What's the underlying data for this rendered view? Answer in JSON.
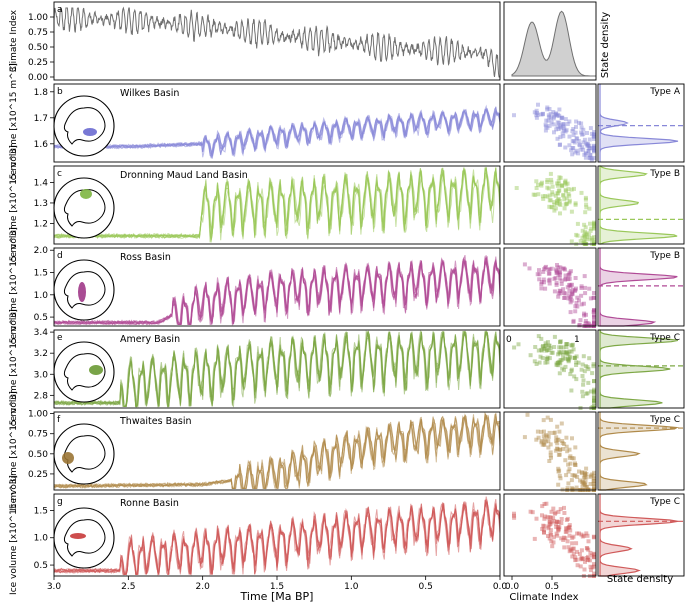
{
  "figure": {
    "time_axis_label": "Time [Ma BP]",
    "time_ticks": [
      "3.0",
      "2.5",
      "2.0",
      "1.5",
      "1.0",
      "0.5",
      "0.0"
    ],
    "climate_index_label": "Climate Index",
    "climate_index_ticks": [
      "0.0",
      "0.5"
    ],
    "state_density_label": "State density",
    "stray_labels": [
      "0",
      "1"
    ]
  },
  "chart_data": [
    {
      "type": "line",
      "panel": "a",
      "ylabel": "Climate Index",
      "ylim": [
        -0.05,
        1.25
      ],
      "y_ticks": [
        "0.00",
        "0.25",
        "0.50",
        "0.75",
        "1.00"
      ],
      "y_tick_values": [
        0.0,
        0.25,
        0.5,
        0.75,
        1.0
      ],
      "color": "#707070",
      "xlim": [
        3.0,
        0.0
      ],
      "trend": [
        [
          3.0,
          1.0
        ],
        [
          2.5,
          0.95
        ],
        [
          2.0,
          0.85
        ],
        [
          1.5,
          0.7
        ],
        [
          1.0,
          0.55
        ],
        [
          0.5,
          0.45
        ],
        [
          0.1,
          0.4
        ],
        [
          0.0,
          0.1
        ]
      ],
      "side_density": {
        "label": "State density",
        "peaks": [
          [
            0.25,
            0.82
          ],
          [
            0.62,
            0.98
          ]
        ]
      }
    },
    {
      "type": "line",
      "panel": "b",
      "basin": "Wilkes Basin",
      "density_type": "Type A",
      "ylabel": "Ice volume [x10^15 m^3]",
      "y_ticks": [
        "1.6",
        "1.7",
        "1.8"
      ],
      "y_tick_values": [
        1.6,
        1.7,
        1.8
      ],
      "ylim": [
        1.53,
        1.83
      ],
      "color": "#8888d8",
      "inset_color": "#6a6ad0",
      "series_count": 8,
      "trend": [
        [
          3.0,
          1.59
        ],
        [
          2.5,
          1.59
        ],
        [
          2.0,
          1.6
        ],
        [
          1.5,
          1.64
        ],
        [
          1.0,
          1.67
        ],
        [
          0.5,
          1.69
        ],
        [
          0.0,
          1.71
        ]
      ],
      "osc_start": 2.0,
      "osc_amp": 0.05,
      "dashed_level": 1.67,
      "density_peaks": [
        [
          1.61,
          1.0
        ],
        [
          1.68,
          0.35
        ]
      ]
    },
    {
      "type": "line",
      "panel": "c",
      "basin": "Dronning Maud Land Basin",
      "density_type": "Type B",
      "ylabel": "Ice volume [x10^15 m^3]",
      "y_ticks": [
        "1.2",
        "1.3",
        "1.4"
      ],
      "y_tick_values": [
        1.2,
        1.3,
        1.4
      ],
      "ylim": [
        1.1,
        1.48
      ],
      "color": "#9ac85a",
      "inset_color": "#7db640",
      "series_count": 8,
      "trend": [
        [
          3.0,
          1.14
        ],
        [
          2.02,
          1.14
        ],
        [
          2.0,
          1.3
        ],
        [
          1.0,
          1.34
        ],
        [
          0.0,
          1.38
        ]
      ],
      "osc_start": 2.0,
      "osc_amp": 0.16,
      "dashed_level": 1.22,
      "density_peaks": [
        [
          1.14,
          1.0
        ],
        [
          1.3,
          0.5
        ],
        [
          1.44,
          0.6
        ]
      ]
    },
    {
      "type": "line",
      "panel": "d",
      "basin": "Ross Basin",
      "density_type": "Type B",
      "ylabel": "Ice volume [x10^15 m^3]",
      "y_ticks": [
        "0.5",
        "1.0",
        "1.5",
        "2.0"
      ],
      "y_tick_values": [
        0.5,
        1.0,
        1.5,
        2.0
      ],
      "ylim": [
        0.3,
        2.05
      ],
      "color": "#b04a96",
      "inset_color": "#a03888",
      "series_count": 8,
      "trend": [
        [
          3.0,
          0.38
        ],
        [
          2.3,
          0.38
        ],
        [
          2.0,
          0.9
        ],
        [
          1.5,
          1.2
        ],
        [
          1.0,
          1.3
        ],
        [
          0.5,
          1.4
        ],
        [
          0.0,
          1.5
        ]
      ],
      "osc_start": 2.2,
      "osc_amp": 0.6,
      "dashed_level": 1.2,
      "density_peaks": [
        [
          0.38,
          0.7
        ],
        [
          1.4,
          1.0
        ]
      ]
    },
    {
      "type": "line",
      "panel": "e",
      "basin": "Amery Basin",
      "density_type": "Type C",
      "ylabel": "Ice volume [x10^15 m^3]",
      "y_ticks": [
        "2.8",
        "3.0",
        "3.2",
        "3.4"
      ],
      "y_tick_values": [
        2.8,
        3.0,
        3.2,
        3.4
      ],
      "ylim": [
        2.68,
        3.42
      ],
      "color": "#7ea846",
      "inset_color": "#6a9a34",
      "series_count": 8,
      "trend": [
        [
          3.0,
          2.73
        ],
        [
          2.55,
          2.73
        ],
        [
          2.5,
          2.95
        ],
        [
          2.0,
          3.05
        ],
        [
          1.5,
          3.15
        ],
        [
          1.0,
          3.2
        ],
        [
          0.0,
          3.25
        ]
      ],
      "osc_start": 2.55,
      "osc_amp": 0.32,
      "dashed_level": 3.08,
      "density_peaks": [
        [
          2.73,
          0.8
        ],
        [
          3.05,
          0.9
        ],
        [
          3.32,
          1.0
        ]
      ]
    },
    {
      "type": "line",
      "panel": "f",
      "basin": "Thwaites Basin",
      "density_type": "Type C",
      "ylabel": "Ice volume [x10^15 m^3]",
      "y_ticks": [
        "0.25",
        "0.50",
        "0.75",
        "1.00"
      ],
      "y_tick_values": [
        0.25,
        0.5,
        0.75,
        1.0
      ],
      "ylim": [
        0.05,
        1.02
      ],
      "color": "#b08a4a",
      "inset_color": "#9a7434",
      "series_count": 7,
      "trend": [
        [
          3.0,
          0.1
        ],
        [
          2.0,
          0.12
        ],
        [
          1.7,
          0.2
        ],
        [
          1.4,
          0.35
        ],
        [
          1.2,
          0.5
        ],
        [
          1.0,
          0.6
        ],
        [
          0.6,
          0.75
        ],
        [
          0.0,
          0.85
        ]
      ],
      "osc_start": 1.8,
      "osc_amp": 0.3,
      "dashed_level": 0.82,
      "density_peaks": [
        [
          0.12,
          0.6
        ],
        [
          0.5,
          0.5
        ],
        [
          0.82,
          1.0
        ]
      ]
    },
    {
      "type": "line",
      "panel": "g",
      "basin": "Ronne Basin",
      "density_type": "Type C",
      "ylabel": "Ice volume [x10^15 m^3]",
      "y_ticks": [
        "0.5",
        "1.0",
        "1.5"
      ],
      "y_tick_values": [
        0.5,
        1.0,
        1.5
      ],
      "ylim": [
        0.3,
        1.8
      ],
      "color": "#d05a5a",
      "inset_color": "#c83a3a",
      "series_count": 8,
      "trend": [
        [
          3.0,
          0.4
        ],
        [
          2.55,
          0.4
        ],
        [
          2.5,
          0.7
        ],
        [
          2.0,
          0.85
        ],
        [
          1.5,
          1.0
        ],
        [
          1.0,
          1.2
        ],
        [
          0.5,
          1.3
        ],
        [
          0.0,
          1.4
        ]
      ],
      "osc_start": 2.55,
      "osc_amp": 0.5,
      "dashed_level": 1.3,
      "density_peaks": [
        [
          0.4,
          0.5
        ],
        [
          0.8,
          0.4
        ],
        [
          1.3,
          1.0
        ]
      ]
    }
  ]
}
